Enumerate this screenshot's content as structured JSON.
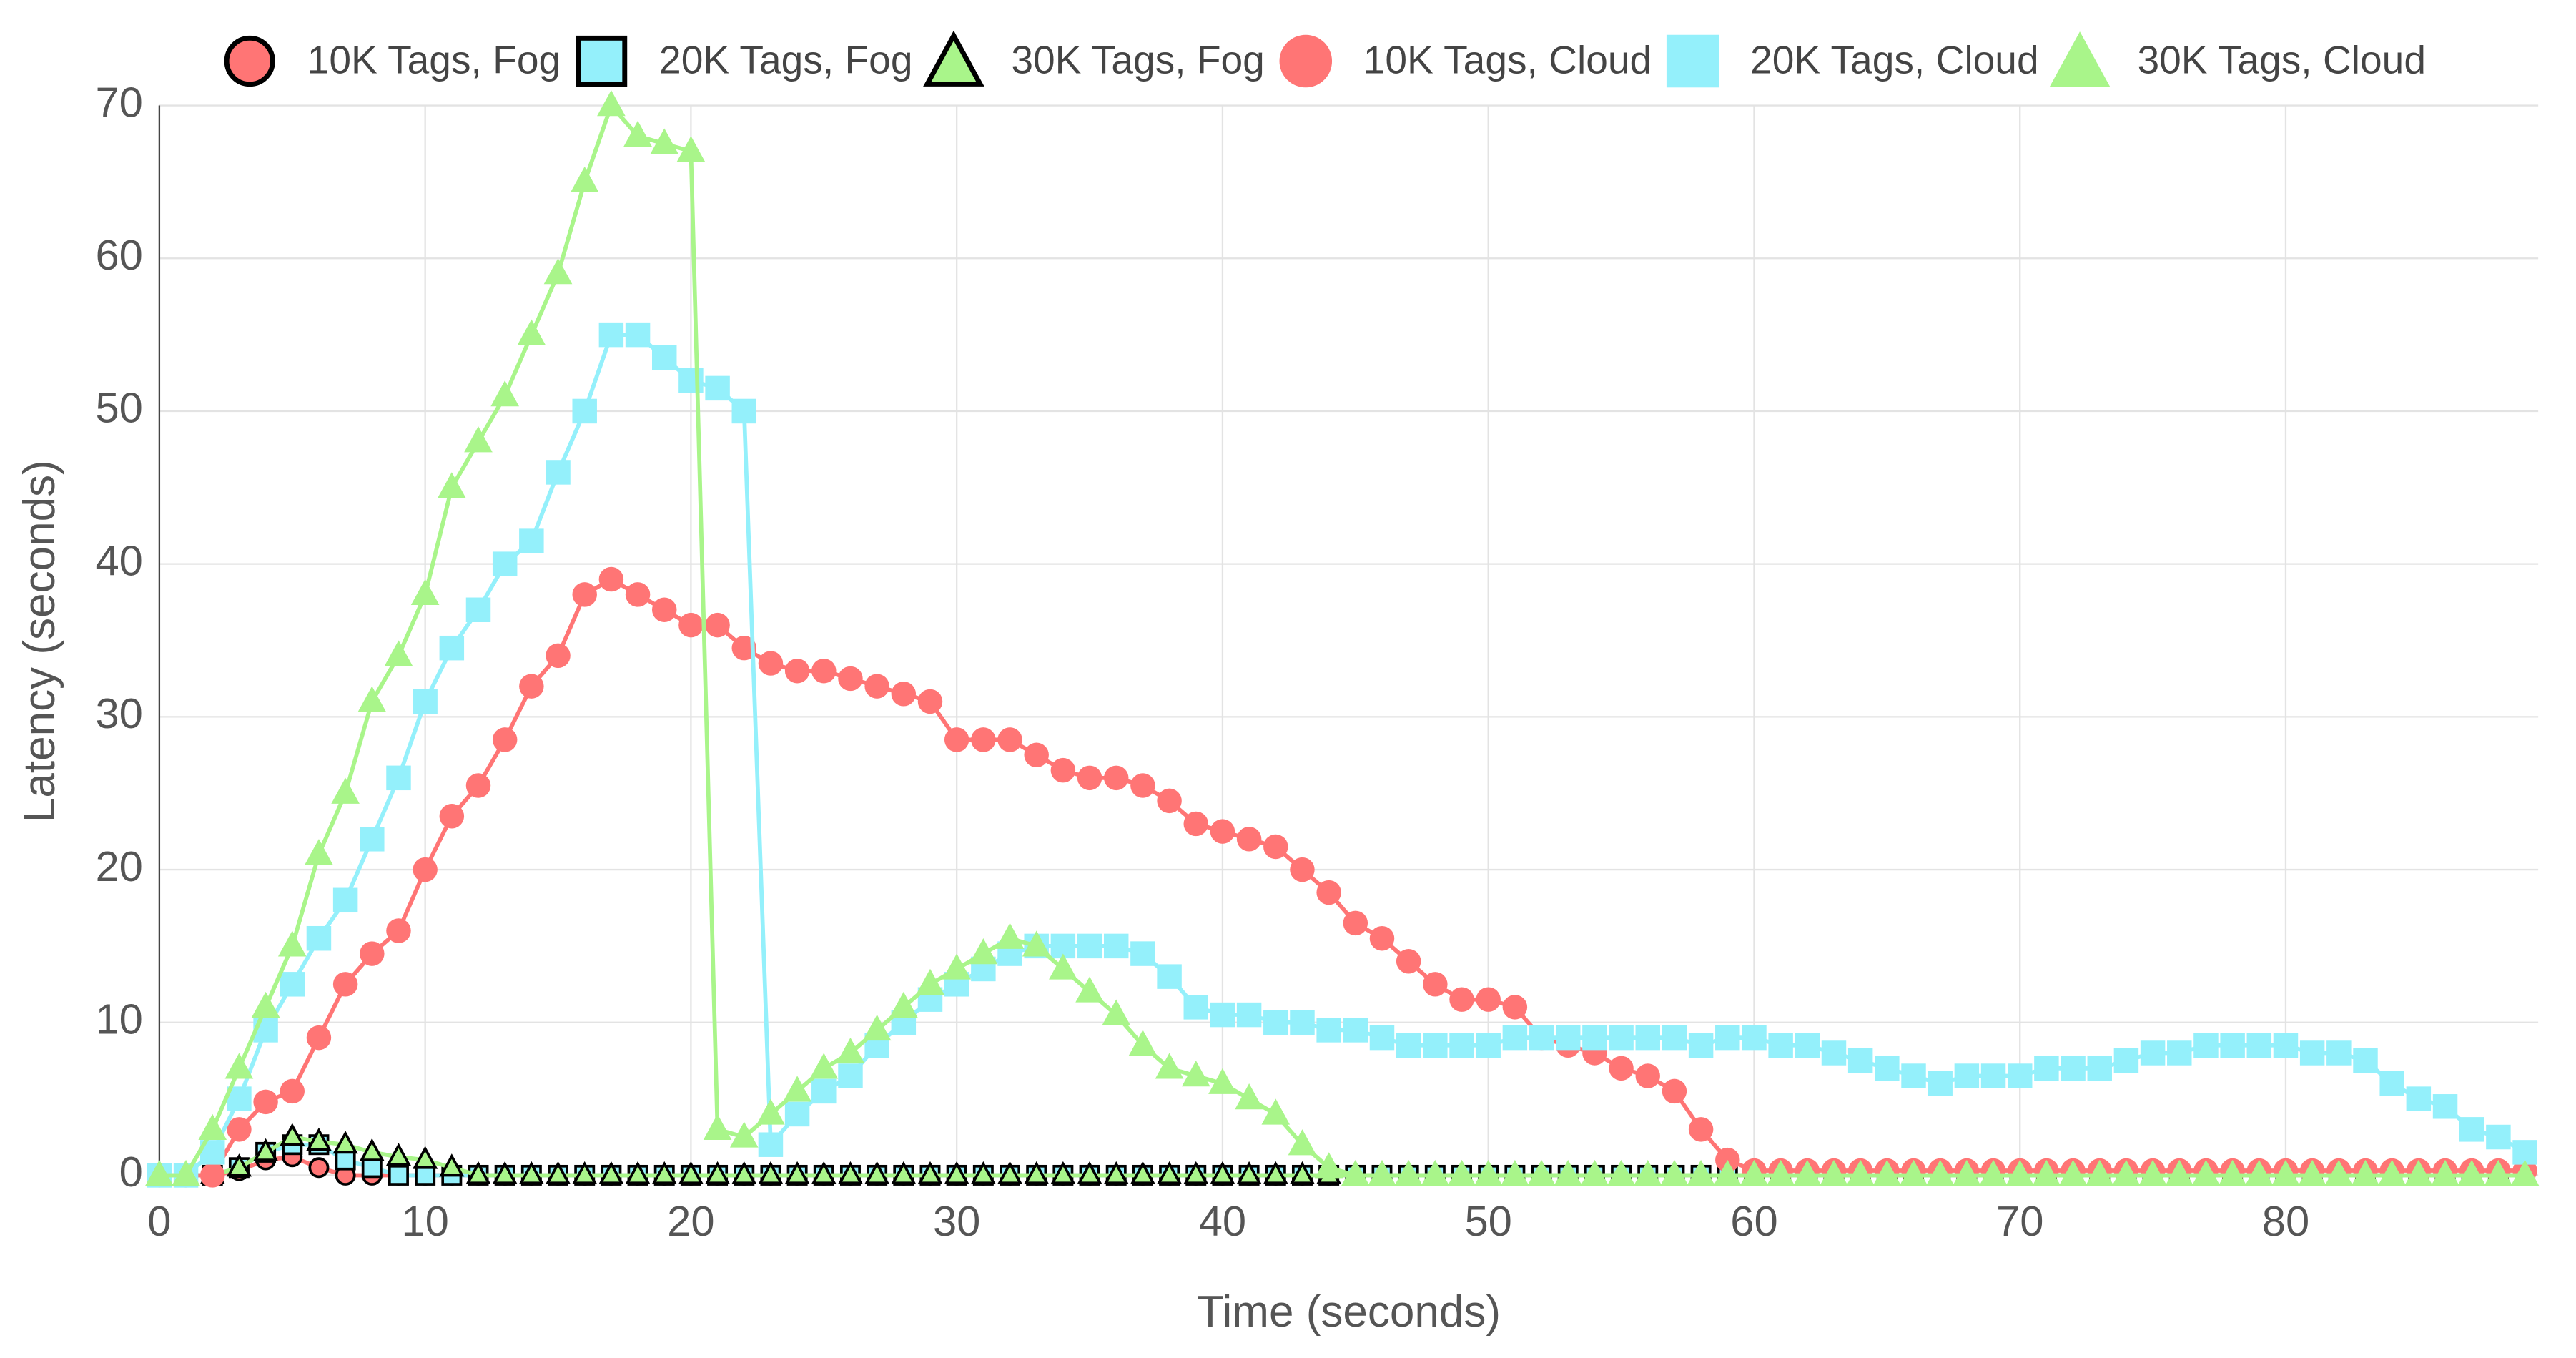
{
  "chart_data": {
    "type": "line",
    "x_label": "Time (seconds)",
    "y_label": "Latency (seconds)",
    "xlim": [
      0,
      89.5
    ],
    "ylim": [
      0,
      70
    ],
    "xticks": [
      0,
      10,
      20,
      30,
      40,
      50,
      60,
      70,
      80
    ],
    "yticks": [
      0,
      10,
      20,
      30,
      40,
      50,
      60,
      70
    ],
    "grid": true,
    "legend": "top",
    "x": [
      0,
      1,
      2,
      3,
      4,
      5,
      6,
      7,
      8,
      9,
      10,
      11,
      12,
      13,
      14,
      15,
      16,
      17,
      18,
      19,
      20,
      21,
      22,
      23,
      24,
      25,
      26,
      27,
      28,
      29,
      30,
      31,
      32,
      33,
      34,
      35,
      36,
      37,
      38,
      39,
      40,
      41,
      42,
      43,
      44,
      45,
      46,
      47,
      48,
      49,
      50,
      51,
      52,
      53,
      54,
      55,
      56,
      57,
      58,
      59,
      60,
      61,
      62,
      63,
      64,
      65,
      66,
      67,
      68,
      69,
      70,
      71,
      72,
      73,
      74,
      75,
      76,
      77,
      78,
      79,
      80,
      81,
      82,
      83,
      84,
      85,
      86,
      87,
      88,
      89
    ],
    "series": [
      {
        "name": "10K Tags, Fog",
        "color": "#ff7575",
        "edgecolor": "#000000",
        "marker": "circle",
        "values": [
          0,
          0,
          0,
          0.3,
          1,
          1.2,
          0.5,
          0,
          0,
          0,
          0,
          0,
          0,
          0,
          0,
          0,
          0,
          0,
          0,
          0,
          0,
          0,
          0,
          0,
          0,
          0,
          0,
          0,
          0,
          0,
          0,
          0,
          0,
          0,
          0,
          0,
          0,
          0,
          0,
          0,
          0,
          0,
          0,
          0,
          0,
          0,
          0,
          0,
          0,
          0,
          0,
          0,
          0,
          0,
          0,
          0,
          0,
          0,
          0,
          0,
          0,
          0,
          0,
          0,
          0,
          0,
          0,
          0,
          0,
          0,
          0,
          0,
          0,
          0,
          0,
          0,
          0,
          0,
          0,
          0,
          0,
          0,
          0,
          0,
          0,
          0,
          0,
          0,
          0,
          0
        ]
      },
      {
        "name": "20K Tags, Fog",
        "color": "#94f0fb",
        "edgecolor": "#000000",
        "marker": "square",
        "values": [
          0,
          0,
          0,
          0.5,
          1.5,
          2,
          2,
          1,
          0.5,
          0,
          0,
          0,
          0,
          0,
          0,
          0,
          0,
          0,
          0,
          0,
          0,
          0,
          0,
          0,
          0,
          0,
          0,
          0,
          0,
          0,
          0,
          0,
          0,
          0,
          0,
          0,
          0,
          0,
          0,
          0,
          0,
          0,
          0,
          0,
          0,
          0,
          0,
          0,
          0,
          0,
          0,
          0,
          0,
          0,
          0,
          0,
          0,
          0,
          0,
          0,
          0,
          0,
          0,
          0,
          0,
          0,
          0,
          0,
          0,
          0,
          0,
          0,
          0,
          0,
          0,
          0,
          0,
          0,
          0,
          0,
          0,
          0,
          0,
          0,
          0,
          0,
          0,
          0,
          0,
          0
        ]
      },
      {
        "name": "30K Tags, Fog",
        "color": "#a9f58a",
        "edgecolor": "#000000",
        "marker": "triangle",
        "values": [
          0,
          0,
          0,
          0.5,
          1.5,
          2.5,
          2.2,
          2,
          1.5,
          1.2,
          1,
          0.5,
          0,
          0,
          0,
          0,
          0,
          0,
          0,
          0,
          0,
          0,
          0,
          0,
          0,
          0,
          0,
          0,
          0,
          0,
          0,
          0,
          0,
          0,
          0,
          0,
          0,
          0,
          0,
          0,
          0,
          0,
          0,
          0,
          0,
          0,
          0,
          0,
          0,
          0,
          0,
          0,
          0,
          0,
          0,
          0,
          0,
          0,
          0,
          0,
          0,
          0,
          0,
          0,
          0,
          0,
          0,
          0,
          0,
          0,
          0,
          0,
          0,
          0,
          0,
          0,
          0,
          0,
          0,
          0,
          0,
          0,
          0,
          0,
          0,
          0,
          0,
          0,
          0,
          0
        ]
      },
      {
        "name": "10K Tags, Cloud",
        "color": "#ff7575",
        "marker": "circle",
        "values": [
          0,
          0,
          0,
          3,
          4.8,
          5.5,
          9,
          12.5,
          14.5,
          16,
          20,
          23.5,
          25.5,
          28.5,
          32,
          34,
          38,
          39,
          38,
          37,
          36,
          36,
          34.5,
          33.5,
          33,
          33,
          32.5,
          32,
          31.5,
          31,
          28.5,
          28.5,
          28.5,
          27.5,
          26.5,
          26,
          26,
          25.5,
          24.5,
          23,
          22.5,
          22,
          21.5,
          20,
          18.5,
          16.5,
          15.5,
          14,
          12.5,
          11.5,
          11.5,
          11,
          9,
          8.5,
          8,
          7,
          6.5,
          5.5,
          3,
          1,
          0.3,
          0.3,
          0.3,
          0.3,
          0.3,
          0.3,
          0.3,
          0.3,
          0.3,
          0.3,
          0.3,
          0.3,
          0.3,
          0.3,
          0.3,
          0.3,
          0.3,
          0.3,
          0.3,
          0.3,
          0.3,
          0.3,
          0.3,
          0.3,
          0.3,
          0.3,
          0.3,
          0.3,
          0.3,
          0.3
        ]
      },
      {
        "name": "20K Tags, Cloud",
        "color": "#94f0fb",
        "marker": "square",
        "values": [
          0,
          0,
          1.5,
          5,
          9.5,
          12.5,
          15.5,
          18,
          22,
          26,
          31,
          34.5,
          37,
          40,
          41.5,
          46,
          50,
          55,
          55,
          53.5,
          52,
          51.5,
          50,
          2,
          4,
          5.5,
          6.5,
          8.5,
          10,
          11.5,
          12.5,
          13.5,
          14.5,
          15,
          15,
          15,
          15,
          14.5,
          13,
          11,
          10.5,
          10.5,
          10,
          10,
          9.5,
          9.5,
          9,
          8.5,
          8.5,
          8.5,
          8.5,
          9,
          9,
          9,
          9,
          9,
          9,
          9,
          8.5,
          9,
          9,
          8.5,
          8.5,
          8,
          7.5,
          7,
          6.5,
          6,
          6.5,
          6.5,
          6.5,
          7,
          7,
          7,
          7.5,
          8,
          8,
          8.5,
          8.5,
          8.5,
          8.5,
          8,
          8,
          7.5,
          6,
          5,
          4.5,
          3,
          2.5,
          1.5
        ]
      },
      {
        "name": "30K Tags, Cloud",
        "color": "#a9f58a",
        "marker": "triangle",
        "values": [
          0,
          0,
          3,
          7,
          11,
          15,
          21,
          25,
          31,
          34,
          38,
          45,
          48,
          51,
          55,
          59,
          65,
          70,
          68,
          67.5,
          67,
          3,
          2.5,
          4,
          5.5,
          7,
          8,
          9.5,
          11,
          12.5,
          13.5,
          14.5,
          15.5,
          15,
          13.5,
          12,
          10.5,
          8.5,
          7,
          6.5,
          6,
          5,
          4,
          2,
          0.5,
          0,
          0,
          0,
          0,
          0,
          0,
          0,
          0,
          0,
          0,
          0,
          0,
          0,
          0,
          0,
          0,
          0,
          0,
          0,
          0,
          0,
          0,
          0,
          0,
          0,
          0,
          0,
          0,
          0,
          0,
          0,
          0,
          0,
          0,
          0,
          0,
          0,
          0,
          0,
          0,
          0,
          0,
          0,
          0,
          0
        ]
      }
    ]
  }
}
